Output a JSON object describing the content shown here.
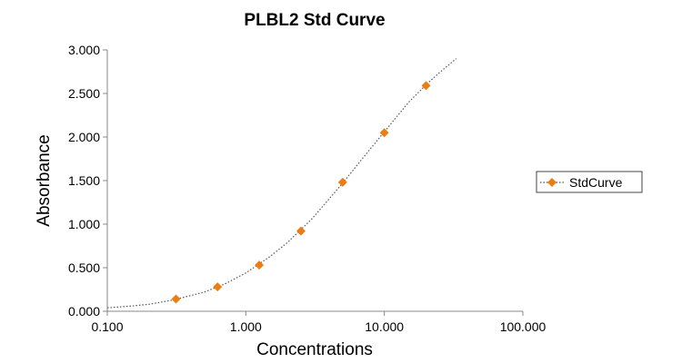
{
  "chart_data": {
    "type": "scatter",
    "title": "PLBL2 Std Curve",
    "xlabel": "Concentrations",
    "ylabel": "Absorbance",
    "x_scale": "log",
    "xlim": [
      0.1,
      100
    ],
    "ylim": [
      0,
      3
    ],
    "x_tick_labels": [
      "0.100",
      "1.000",
      "10.000",
      "100.000"
    ],
    "y_tick_labels": [
      "0.000",
      "0.500",
      "1.000",
      "1.500",
      "2.000",
      "2.500",
      "3.000"
    ],
    "grid": false,
    "legend_position": "right",
    "series": [
      {
        "name": "StdCurve",
        "color": "#ed7d12",
        "marker": "diamond",
        "points": [
          {
            "x": 0.313,
            "y": 0.14
          },
          {
            "x": 0.625,
            "y": 0.28
          },
          {
            "x": 1.25,
            "y": 0.53
          },
          {
            "x": 2.5,
            "y": 0.92
          },
          {
            "x": 5.0,
            "y": 1.48
          },
          {
            "x": 10.0,
            "y": 2.05
          },
          {
            "x": 20.0,
            "y": 2.59
          }
        ],
        "fit_curve": {
          "style": "dotted",
          "color": "#555555",
          "x": [
            0.1,
            0.15,
            0.2,
            0.3,
            0.5,
            0.7,
            1.0,
            1.5,
            2.0,
            3.0,
            5.0,
            7.0,
            10.0,
            15.0,
            20.0,
            25.0,
            33.0
          ],
          "y": [
            0.04,
            0.06,
            0.08,
            0.13,
            0.22,
            0.31,
            0.44,
            0.63,
            0.79,
            1.06,
            1.47,
            1.76,
            2.06,
            2.4,
            2.6,
            2.74,
            2.9
          ]
        }
      }
    ]
  }
}
